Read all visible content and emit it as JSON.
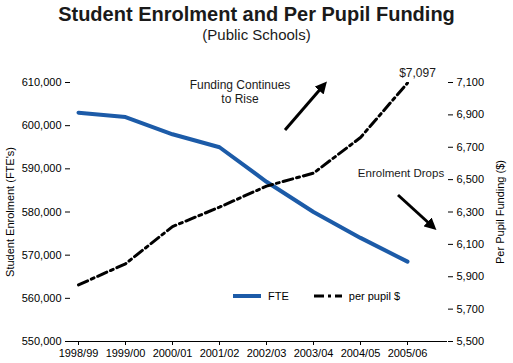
{
  "chart_data": {
    "type": "line",
    "title": "Student Enrolment and Per Pupil Funding",
    "subtitle": "(Public Schools)",
    "categories": [
      "1998/99",
      "1999/00",
      "2000/01",
      "2001/02",
      "2002/03",
      "2003/04",
      "2004/05",
      "2005/06"
    ],
    "ylabel": "Student Enrolment (FTE's)",
    "y2label": "Per Pupil Funding ($)",
    "ylim": [
      550000,
      610000
    ],
    "yticks": [
      {
        "value": 550000,
        "label": "550,000"
      },
      {
        "value": 560000,
        "label": "560,000"
      },
      {
        "value": 570000,
        "label": "570,000"
      },
      {
        "value": 580000,
        "label": "580,000"
      },
      {
        "value": 590000,
        "label": "590,000"
      },
      {
        "value": 600000,
        "label": "600,000"
      },
      {
        "value": 610000,
        "label": "610,000"
      }
    ],
    "y2lim": [
      5500,
      7100
    ],
    "y2ticks": [
      {
        "value": 5500,
        "label": "5,500"
      },
      {
        "value": 5700,
        "label": "5,700"
      },
      {
        "value": 5900,
        "label": "5,900"
      },
      {
        "value": 6100,
        "label": "6,100"
      },
      {
        "value": 6300,
        "label": "6,300"
      },
      {
        "value": 6500,
        "label": "6,500"
      },
      {
        "value": 6700,
        "label": "6,700"
      },
      {
        "value": 6900,
        "label": "6,900"
      },
      {
        "value": 7100,
        "label": "7,100"
      }
    ],
    "series": [
      {
        "name": "FTE",
        "color": "#1c5ba8",
        "line_style": "solid",
        "axis": "y",
        "values": [
          603000,
          602000,
          598000,
          595000,
          587000,
          580000,
          574000,
          568500
        ]
      },
      {
        "name": "per pupil $",
        "color": "#000000",
        "line_style": "dashdot",
        "axis": "y2",
        "values": [
          5850,
          5980,
          6210,
          6330,
          6460,
          6540,
          6760,
          7097
        ]
      }
    ],
    "annotations": [
      "Funding Continues to Rise",
      "Enrolment Drops",
      "$7,097"
    ],
    "legend": "bottom",
    "grid": false
  }
}
